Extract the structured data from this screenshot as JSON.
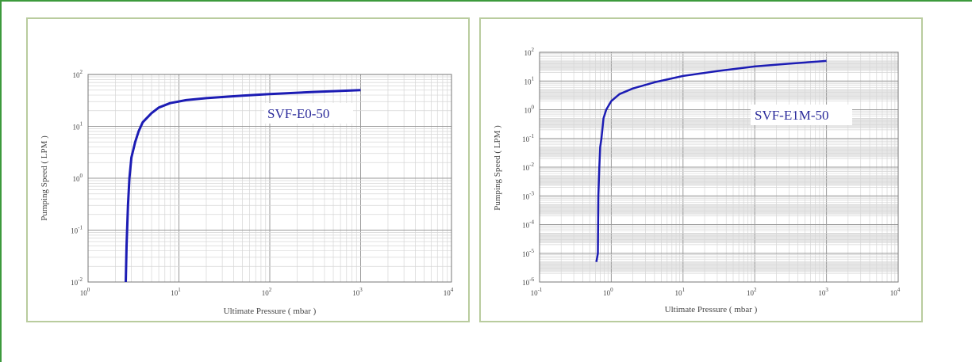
{
  "chart_data": [
    {
      "type": "line",
      "xlabel": "Ultimate Pressure ( mbar )",
      "ylabel": "Pumping Speed ( LPM )",
      "xscale": "log",
      "yscale": "log",
      "xlim": [
        1,
        10000
      ],
      "ylim": [
        0.01,
        100
      ],
      "x_ticks": [
        "10^0",
        "10^1",
        "10^2",
        "10^3",
        "10^4"
      ],
      "y_ticks": [
        "10^-2",
        "10^-1",
        "10^0",
        "10^1",
        "10^2"
      ],
      "grid": true,
      "annotation": "SVF-E0-50",
      "color": "#1c1cb4",
      "series": [
        {
          "x": [
            2.6,
            2.65,
            2.75,
            2.85,
            3.0,
            3.3,
            3.6,
            4.0,
            5.0,
            6.0,
            8.0,
            12,
            20,
            50,
            100,
            300,
            1000
          ],
          "y": [
            0.01,
            0.05,
            0.3,
            1.0,
            2.5,
            5.0,
            8.0,
            12,
            18,
            23,
            28,
            32,
            35,
            39,
            42,
            46,
            50
          ]
        }
      ]
    },
    {
      "type": "line",
      "xlabel": "Ultimate Pressure ( mbar )",
      "ylabel": "Pumping Speed ( LPM )",
      "xscale": "log",
      "yscale": "log",
      "xlim": [
        0.1,
        10000
      ],
      "ylim": [
        1e-06,
        100
      ],
      "x_ticks": [
        "10^-1",
        "10^0",
        "10^1",
        "10^2",
        "10^3",
        "10^4"
      ],
      "y_ticks": [
        "10^-6",
        "10^-5",
        "10^-4",
        "10^-3",
        "10^-2",
        "10^-1",
        "10^0",
        "10^1",
        "10^2"
      ],
      "grid": true,
      "annotation": "SVF-E1M-50",
      "color": "#1c1cb4",
      "series": [
        {
          "x": [
            0.62,
            0.65,
            0.66,
            0.68,
            0.7,
            0.73,
            0.78,
            0.85,
            1.0,
            1.3,
            2.0,
            4.0,
            10,
            30,
            100,
            300,
            1000
          ],
          "y": [
            5e-06,
            1e-05,
            0.001,
            0.01,
            0.05,
            0.1,
            0.5,
            1.0,
            2.0,
            3.5,
            5.5,
            9.0,
            15,
            22,
            32,
            40,
            50
          ]
        }
      ]
    }
  ]
}
